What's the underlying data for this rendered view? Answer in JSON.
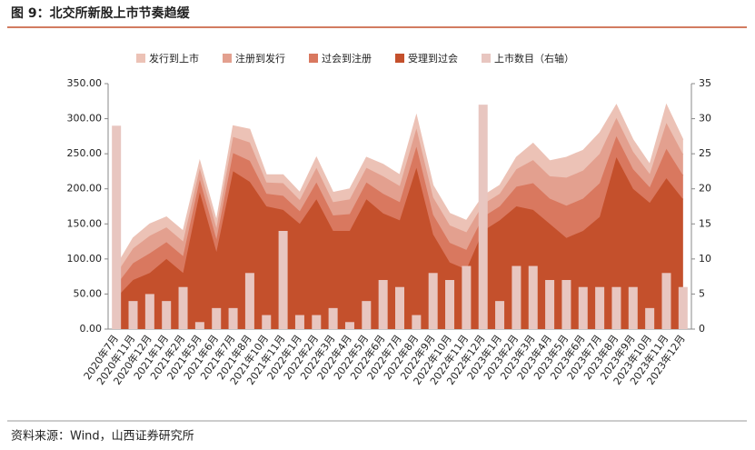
{
  "chart_data": {
    "type": "stacked_area_bar",
    "title": "图 9：北交所新股上市节奏趋缓",
    "source": "资料来源：Wind，山西证券研究所",
    "categories": [
      "2020年7月",
      "2020年11月",
      "2020年12月",
      "2021年1月",
      "2021年2月",
      "2021年5月",
      "2021年6月",
      "2021年7月",
      "2021年8月",
      "2021年10月",
      "2021年11月",
      "2022年1月",
      "2022年2月",
      "2022年3月",
      "2022年4月",
      "2022年5月",
      "2022年6月",
      "2022年7月",
      "2022年8月",
      "2022年9月",
      "2022年10月",
      "2022年11月",
      "2022年12月",
      "2023年1月",
      "2023年2月",
      "2023年3月",
      "2023年4月",
      "2023年5月",
      "2023年6月",
      "2023年7月",
      "2023年8月",
      "2023年9月",
      "2023年10月",
      "2023年11月",
      "2023年12月"
    ],
    "series": [
      {
        "name": "受理到过会",
        "color": "#c4502c",
        "values": [
          45,
          70,
          80,
          100,
          80,
          195,
          110,
          225,
          210,
          175,
          170,
          150,
          185,
          140,
          140,
          185,
          165,
          155,
          230,
          135,
          95,
          85,
          140,
          155,
          175,
          170,
          150,
          130,
          140,
          160,
          245,
          200,
          180,
          215,
          185
        ]
      },
      {
        "name": "过会到注册",
        "color": "#d9785f",
        "values": [
          18,
          24,
          28,
          24,
          24,
          18,
          18,
          26,
          30,
          18,
          20,
          18,
          24,
          22,
          24,
          24,
          28,
          26,
          30,
          28,
          28,
          28,
          20,
          20,
          28,
          38,
          36,
          46,
          46,
          48,
          30,
          28,
          22,
          42,
          34
        ]
      },
      {
        "name": "注册到发行",
        "color": "#e3a08f",
        "values": [
          16,
          21,
          25,
          21,
          21,
          16,
          16,
          23,
          26,
          16,
          18,
          16,
          21,
          19,
          21,
          21,
          25,
          23,
          26,
          25,
          25,
          25,
          18,
          18,
          25,
          33,
          32,
          40,
          40,
          42,
          26,
          25,
          19,
          37,
          30
        ]
      },
      {
        "name": "发行到上市",
        "color": "#ecc2b6",
        "values": [
          11,
          15,
          17,
          15,
          15,
          11,
          11,
          16,
          19,
          11,
          12,
          11,
          15,
          14,
          15,
          15,
          17,
          16,
          19,
          17,
          17,
          17,
          12,
          12,
          17,
          24,
          22,
          29,
          29,
          30,
          19,
          17,
          14,
          26,
          21
        ]
      },
      {
        "name": "上市数目（右轴）",
        "color": "#e8c6c0",
        "axis": "y2",
        "values": [
          29,
          4,
          5,
          4,
          6,
          1,
          3,
          3,
          8,
          2,
          14,
          2,
          2,
          3,
          1,
          4,
          7,
          6,
          2,
          8,
          7,
          9,
          32,
          4,
          9,
          9,
          7,
          7,
          6,
          6,
          6,
          6,
          3,
          8,
          6
        ]
      }
    ],
    "ylim": [
      0,
      350
    ],
    "yticks": [
      {
        "value": 0,
        "label": "0.00"
      },
      {
        "value": 50,
        "label": "50.00"
      },
      {
        "value": 100,
        "label": "100.00"
      },
      {
        "value": 150,
        "label": "150.00"
      },
      {
        "value": 200,
        "label": "200.00"
      },
      {
        "value": 250,
        "label": "250.00"
      },
      {
        "value": 300,
        "label": "300.00"
      },
      {
        "value": 350,
        "label": "350.00"
      }
    ],
    "y2lim": [
      0,
      35
    ],
    "y2ticks": [
      0,
      5,
      10,
      15,
      20,
      25,
      30,
      35
    ],
    "legend": "top"
  }
}
